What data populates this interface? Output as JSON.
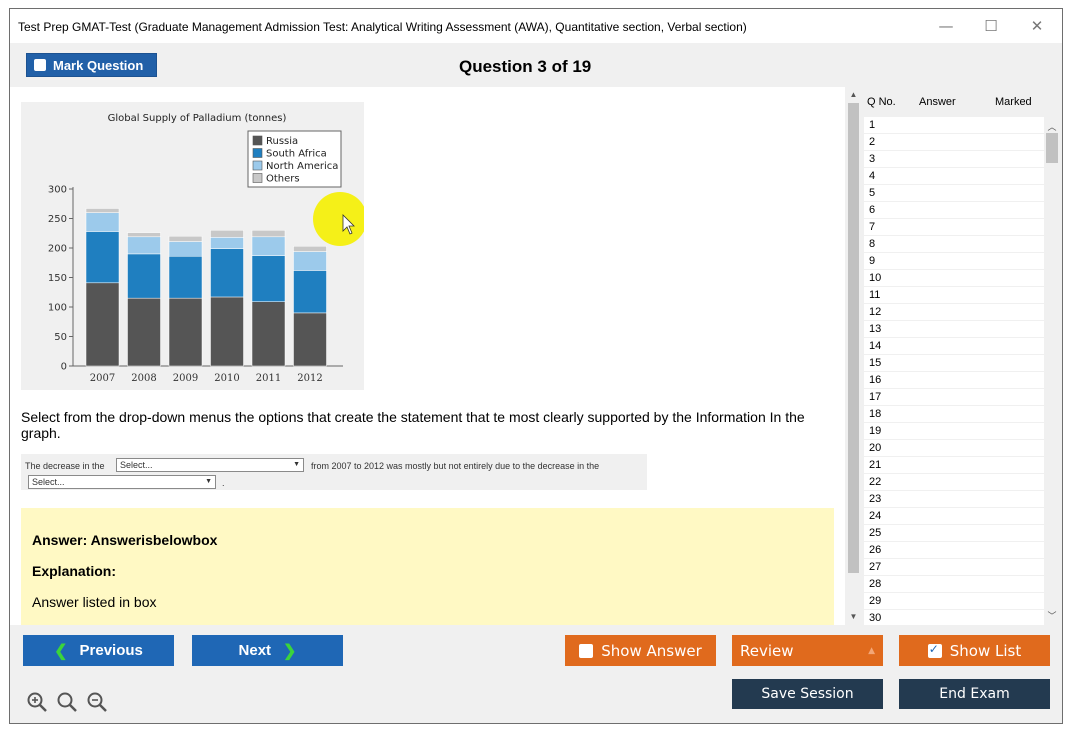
{
  "window": {
    "title": "Test Prep GMAT-Test (Graduate Management Admission Test: Analytical Writing Assessment (AWA), Quantitative section, Verbal section)",
    "minimize": "—",
    "maximize": "☐",
    "close": "✕"
  },
  "header": {
    "mark_label": "Mark Question",
    "question_title": "Question 3 of 19"
  },
  "chart_data": {
    "type": "bar",
    "stacked": true,
    "title": "Global Supply of Palladium (tonnes)",
    "categories": [
      "2007",
      "2008",
      "2009",
      "2010",
      "2011",
      "2012"
    ],
    "series": [
      {
        "name": "Russia",
        "color": "#555555",
        "values": [
          141,
          115,
          115,
          117,
          109,
          90
        ]
      },
      {
        "name": "South Africa",
        "color": "#1f7fc0",
        "values": [
          87,
          75,
          71,
          82,
          78,
          72
        ]
      },
      {
        "name": "North America",
        "color": "#9ccaeb",
        "values": [
          32,
          29,
          25,
          19,
          32,
          32
        ]
      },
      {
        "name": "Others",
        "color": "#c8c8c8",
        "values": [
          7,
          7,
          9,
          12,
          11,
          9
        ]
      }
    ],
    "ylim": [
      0,
      300
    ],
    "yticks": [
      "0",
      "50",
      "100",
      "150",
      "200",
      "250",
      "300"
    ],
    "legend": "top-right",
    "grid": false
  },
  "question": {
    "statement": "Select from the drop-down menus the options that create the statement that te most clearly supported by the Information In the graph.",
    "text_1": "The decrease in the",
    "select_1": "Select...",
    "text_2": "from 2007 to 2012 was mostly but not entirely due to the decrease in the",
    "select_2": "Select...",
    "text_3": "."
  },
  "answer": {
    "answer_line": "Answer: Answerisbelowbox",
    "explanation_label": "Explanation:",
    "explanation_text": "Answer listed in box"
  },
  "qlist": {
    "col_qno": "Q No.",
    "col_answer": "Answer",
    "col_marked": "Marked",
    "rows": [
      "1",
      "2",
      "3",
      "4",
      "5",
      "6",
      "7",
      "8",
      "9",
      "10",
      "11",
      "12",
      "13",
      "14",
      "15",
      "16",
      "17",
      "18",
      "19",
      "20",
      "21",
      "22",
      "23",
      "24",
      "25",
      "26",
      "27",
      "28",
      "29",
      "30"
    ]
  },
  "footer": {
    "previous": "Previous",
    "next": "Next",
    "show_answer": "Show Answer",
    "review": "Review",
    "show_list": "Show List",
    "save_session": "Save Session",
    "end_exam": "End Exam"
  }
}
